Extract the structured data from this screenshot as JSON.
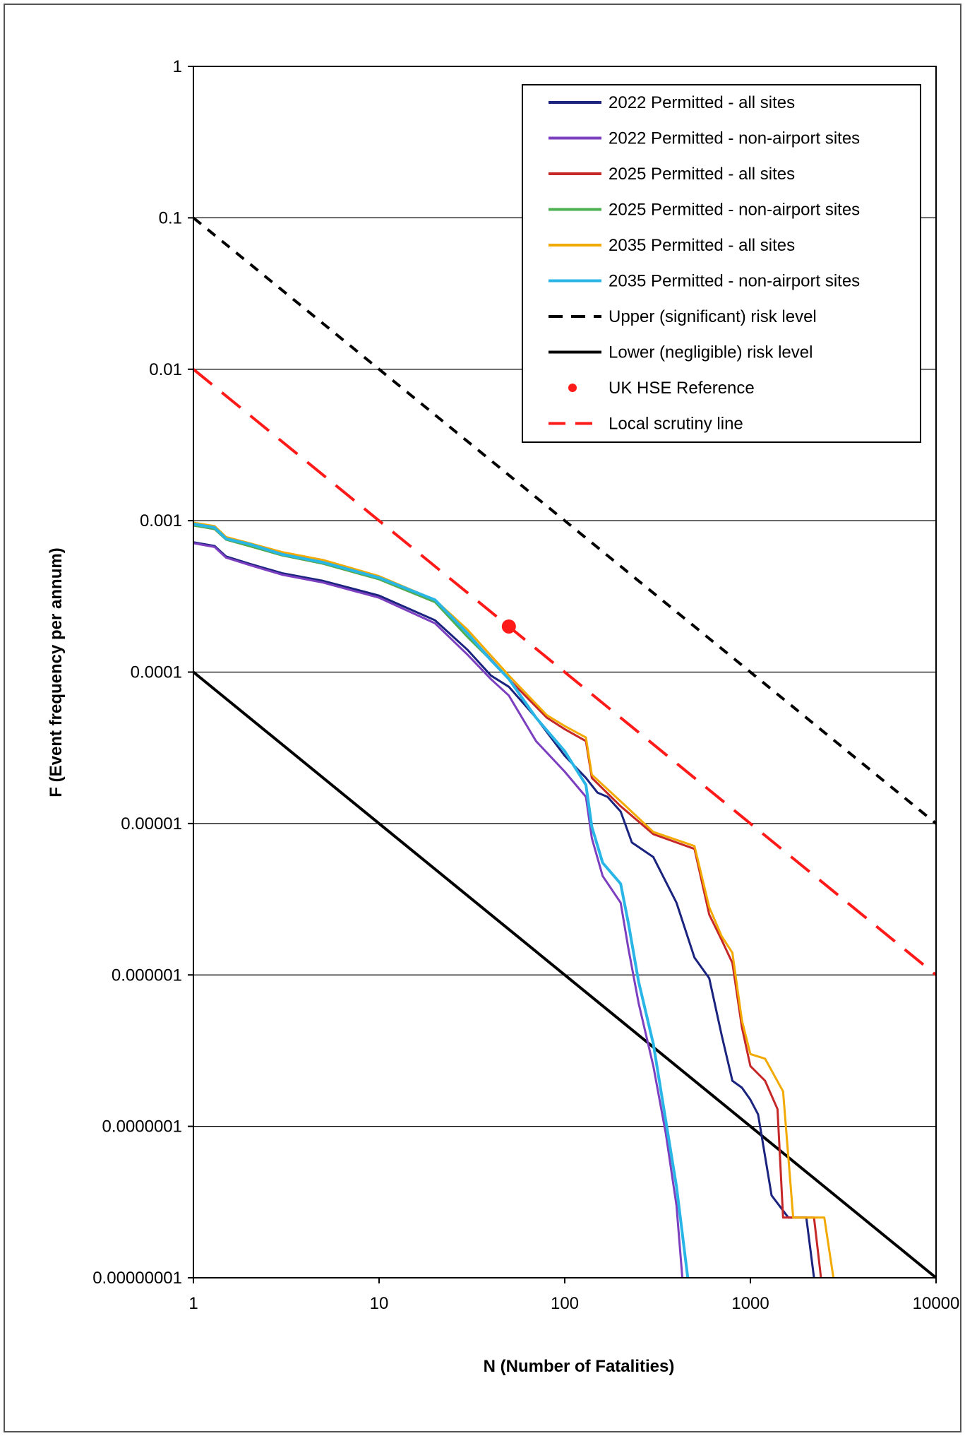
{
  "chart_data": {
    "type": "line",
    "xscale": "log",
    "yscale": "log",
    "xlim": [
      1,
      10000
    ],
    "ylim": [
      1e-08,
      1
    ],
    "xlabel": "N (Number of Fatalities)",
    "ylabel": "F (Event frequency per annum)",
    "x_ticks": [
      "1",
      "10",
      "100",
      "1000",
      "10000"
    ],
    "y_ticks": [
      "1",
      "0.1",
      "0.01",
      "0.001",
      "0.0001",
      "0.00001",
      "0.000001",
      "0.0000001",
      "0.00000001"
    ],
    "grid": "horizontal major gridlines",
    "legend_position": "top-right",
    "series": [
      {
        "name": "2022 Permitted - all sites",
        "color": "#1a237e",
        "width": 3,
        "style": "solid",
        "points": [
          [
            1,
            0.00072
          ],
          [
            1.3,
            0.00068
          ],
          [
            1.5,
            0.00058
          ],
          [
            2,
            0.00052
          ],
          [
            3,
            0.00045
          ],
          [
            5,
            0.0004
          ],
          [
            10,
            0.00032
          ],
          [
            20,
            0.00022
          ],
          [
            30,
            0.00014
          ],
          [
            40,
            9.5e-05
          ],
          [
            50,
            8e-05
          ],
          [
            70,
            5e-05
          ],
          [
            100,
            2.8e-05
          ],
          [
            130,
            2e-05
          ],
          [
            150,
            1.6e-05
          ],
          [
            170,
            1.5e-05
          ],
          [
            200,
            1.2e-05
          ],
          [
            230,
            7.5e-06
          ],
          [
            300,
            6e-06
          ],
          [
            400,
            3e-06
          ],
          [
            500,
            1.3e-06
          ],
          [
            600,
            9.5e-07
          ],
          [
            700,
            4e-07
          ],
          [
            800,
            2e-07
          ],
          [
            900,
            1.8e-07
          ],
          [
            1000,
            1.5e-07
          ],
          [
            1100,
            1.2e-07
          ],
          [
            1300,
            3.5e-08
          ],
          [
            1600,
            2.5e-08
          ],
          [
            2000,
            2.5e-08
          ],
          [
            2200,
            1e-08
          ]
        ]
      },
      {
        "name": "2022 Permitted - non-airport sites",
        "color": "#7b3fbf",
        "width": 3,
        "style": "solid",
        "points": [
          [
            1,
            0.00071
          ],
          [
            1.3,
            0.00067
          ],
          [
            1.5,
            0.00057
          ],
          [
            2,
            0.00051
          ],
          [
            3,
            0.00044
          ],
          [
            5,
            0.00039
          ],
          [
            10,
            0.00031
          ],
          [
            20,
            0.00021
          ],
          [
            30,
            0.00013
          ],
          [
            40,
            9e-05
          ],
          [
            50,
            7e-05
          ],
          [
            70,
            3.5e-05
          ],
          [
            100,
            2.2e-05
          ],
          [
            130,
            1.5e-05
          ],
          [
            140,
            8e-06
          ],
          [
            160,
            4.5e-06
          ],
          [
            200,
            3e-06
          ],
          [
            220,
            1.5e-06
          ],
          [
            250,
            6.5e-07
          ],
          [
            300,
            2.5e-07
          ],
          [
            350,
            9e-08
          ],
          [
            400,
            3e-08
          ],
          [
            430,
            1e-08
          ]
        ]
      },
      {
        "name": "2025 Permitted - all sites",
        "color": "#c62828",
        "width": 3,
        "style": "solid",
        "points": [
          [
            1,
            0.00093
          ],
          [
            1.3,
            0.00088
          ],
          [
            1.5,
            0.00075
          ],
          [
            2,
            0.00068
          ],
          [
            3,
            0.00059
          ],
          [
            5,
            0.00052
          ],
          [
            10,
            0.00041
          ],
          [
            20,
            0.00029
          ],
          [
            30,
            0.00018
          ],
          [
            50,
            9e-05
          ],
          [
            80,
            5e-05
          ],
          [
            100,
            4.2e-05
          ],
          [
            130,
            3.5e-05
          ],
          [
            140,
            2e-05
          ],
          [
            200,
            1.3e-05
          ],
          [
            300,
            8.5e-06
          ],
          [
            500,
            6.8e-06
          ],
          [
            600,
            2.5e-06
          ],
          [
            700,
            1.7e-06
          ],
          [
            800,
            1.2e-06
          ],
          [
            900,
            4.5e-07
          ],
          [
            1000,
            2.5e-07
          ],
          [
            1200,
            2e-07
          ],
          [
            1400,
            1.3e-07
          ],
          [
            1500,
            2.5e-08
          ],
          [
            2200,
            2.5e-08
          ],
          [
            2400,
            1e-08
          ]
        ]
      },
      {
        "name": "2025 Permitted - non-airport sites",
        "color": "#4caf50",
        "width": 3,
        "style": "solid",
        "points": [
          [
            1,
            0.00093
          ],
          [
            1.3,
            0.00088
          ],
          [
            1.5,
            0.00075
          ],
          [
            2,
            0.00068
          ],
          [
            3,
            0.00059
          ],
          [
            5,
            0.00052
          ],
          [
            10,
            0.00041
          ],
          [
            20,
            0.00029
          ],
          [
            30,
            0.00017
          ],
          [
            40,
            0.00012
          ],
          [
            50,
            9e-05
          ],
          [
            70,
            5e-05
          ],
          [
            100,
            3e-05
          ],
          [
            130,
            1.8e-05
          ],
          [
            140,
            9.5e-06
          ],
          [
            160,
            5.5e-06
          ],
          [
            200,
            4e-06
          ],
          [
            220,
            2.2e-06
          ],
          [
            250,
            9e-07
          ],
          [
            300,
            3.5e-07
          ],
          [
            400,
            4e-08
          ],
          [
            460,
            1e-08
          ]
        ]
      },
      {
        "name": "2035 Permitted - all sites",
        "color": "#f2a900",
        "width": 3,
        "style": "solid",
        "points": [
          [
            1,
            0.00097
          ],
          [
            1.3,
            0.00092
          ],
          [
            1.5,
            0.00078
          ],
          [
            2,
            0.00071
          ],
          [
            3,
            0.00062
          ],
          [
            5,
            0.00055
          ],
          [
            10,
            0.00043
          ],
          [
            20,
            0.0003
          ],
          [
            30,
            0.00019
          ],
          [
            50,
            9.5e-05
          ],
          [
            80,
            5.2e-05
          ],
          [
            100,
            4.4e-05
          ],
          [
            130,
            3.7e-05
          ],
          [
            140,
            2.1e-05
          ],
          [
            200,
            1.4e-05
          ],
          [
            300,
            8.8e-06
          ],
          [
            500,
            7.1e-06
          ],
          [
            600,
            2.8e-06
          ],
          [
            700,
            1.8e-06
          ],
          [
            800,
            1.4e-06
          ],
          [
            900,
            5e-07
          ],
          [
            1000,
            3e-07
          ],
          [
            1200,
            2.8e-07
          ],
          [
            1500,
            1.7e-07
          ],
          [
            1700,
            2.5e-08
          ],
          [
            2500,
            2.5e-08
          ],
          [
            2800,
            1e-08
          ]
        ]
      },
      {
        "name": "2035 Permitted - non-airport sites",
        "color": "#29b6e6",
        "width": 4,
        "style": "solid",
        "points": [
          [
            1,
            0.00095
          ],
          [
            1.3,
            0.0009
          ],
          [
            1.5,
            0.00076
          ],
          [
            2,
            0.0007
          ],
          [
            3,
            0.0006
          ],
          [
            5,
            0.00053
          ],
          [
            10,
            0.00042
          ],
          [
            20,
            0.0003
          ],
          [
            30,
            0.00018
          ],
          [
            40,
            0.00012
          ],
          [
            50,
            9e-05
          ],
          [
            70,
            5e-05
          ],
          [
            100,
            3e-05
          ],
          [
            130,
            1.8e-05
          ],
          [
            140,
            9.5e-06
          ],
          [
            160,
            5.5e-06
          ],
          [
            200,
            4e-06
          ],
          [
            220,
            2.2e-06
          ],
          [
            250,
            9e-07
          ],
          [
            300,
            3.5e-07
          ],
          [
            400,
            4e-08
          ],
          [
            460,
            1e-08
          ]
        ]
      },
      {
        "name": "Upper (significant) risk level",
        "color": "#000000",
        "width": 4,
        "style": "dash",
        "points": [
          [
            1,
            0.1
          ],
          [
            10000,
            1e-05
          ]
        ]
      },
      {
        "name": "Lower (negligible) risk level",
        "color": "#000000",
        "width": 4,
        "style": "solid",
        "points": [
          [
            1,
            0.0001
          ],
          [
            10000,
            1e-08
          ]
        ]
      },
      {
        "name": "Local scrutiny line",
        "color": "#ff1a1a",
        "width": 4,
        "style": "longdash",
        "points": [
          [
            1,
            0.01
          ],
          [
            10000,
            1e-06
          ]
        ]
      }
    ],
    "markers": [
      {
        "name": "UK HSE Reference",
        "color": "#ff1a1a",
        "x": 50,
        "y": 0.0002
      }
    ],
    "legend": [
      {
        "label": "2022 Permitted - all sites",
        "color": "#1a237e",
        "style": "solid"
      },
      {
        "label": "2022 Permitted - non-airport sites",
        "color": "#7b3fbf",
        "style": "solid"
      },
      {
        "label": "2025 Permitted - all sites",
        "color": "#c62828",
        "style": "solid"
      },
      {
        "label": "2025 Permitted - non-airport sites",
        "color": "#4caf50",
        "style": "solid"
      },
      {
        "label": "2035 Permitted - all sites",
        "color": "#f2a900",
        "style": "solid"
      },
      {
        "label": "2035 Permitted - non-airport sites",
        "color": "#29b6e6",
        "style": "solid"
      },
      {
        "label": "Upper (significant) risk level",
        "color": "#000000",
        "style": "dash"
      },
      {
        "label": "Lower (negligible) risk level",
        "color": "#000000",
        "style": "solid"
      },
      {
        "label": "UK HSE Reference",
        "color": "#ff1a1a",
        "style": "marker"
      },
      {
        "label": "Local scrutiny line",
        "color": "#ff1a1a",
        "style": "longdash"
      }
    ]
  }
}
